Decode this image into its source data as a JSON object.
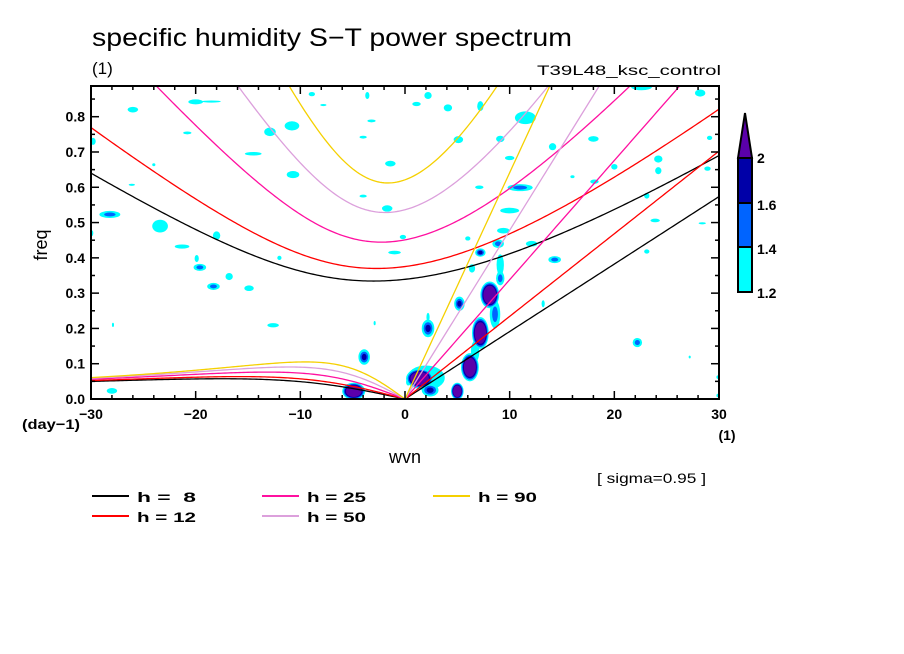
{
  "chart_data": {
    "type": "heatmap",
    "title": "specific humidity S−T power spectrum",
    "subtitle": "(1)",
    "run_label": "T39L48_ksc_control",
    "xlabel": "wvn",
    "ylabel": "freq",
    "x_units": "(1)",
    "y_units": "(day−1)",
    "xlim": [
      -30,
      30
    ],
    "ylim": [
      0,
      0.887
    ],
    "grid": false,
    "xticks": [
      -30,
      -20,
      -10,
      0,
      10,
      20,
      30
    ],
    "xtick_labels": [
      "−30",
      "−20",
      "−10",
      "0",
      "10",
      "20",
      "30"
    ],
    "x_minor_step": 2,
    "yticks": [
      0,
      0.1,
      0.2,
      0.3,
      0.4,
      0.5,
      0.6,
      0.7,
      0.8
    ],
    "ytick_labels": [
      "0.0",
      "0.1",
      "0.2",
      "0.3",
      "0.4",
      "0.5",
      "0.6",
      "0.7",
      "0.8"
    ],
    "y_minor_step": 0.05,
    "note": "[ sigma=0.95 ]",
    "colorbar": {
      "levels": [
        1.2,
        1.4,
        1.6,
        2
      ],
      "labels": [
        "1.2",
        "1.4",
        "1.6",
        "2"
      ],
      "colors": [
        "#00ffff",
        "#0064ff",
        "#0000a8",
        "#5a00aa"
      ],
      "extend": "max",
      "placement": "right"
    },
    "dispersion_curves": {
      "wave_types": [
        "kelvin",
        "n1_equatorial_rossby",
        "n1_inertio_gravity"
      ]
    },
    "legend_placement": "bottom",
    "legend": [
      {
        "label": "h =  8",
        "h": 8,
        "color": "#000000"
      },
      {
        "label": "h = 12",
        "h": 12,
        "color": "#ff0000"
      },
      {
        "label": "h = 25",
        "h": 25,
        "color": "#ff10a0"
      },
      {
        "label": "h = 50",
        "h": 50,
        "color": "#dca0dc"
      },
      {
        "label": "h = 90",
        "h": 90,
        "color": "#f5d000"
      }
    ],
    "shaded_regions": {
      "fields": [
        "wvn",
        "freq",
        "dwvn",
        "dfreq",
        "max_level"
      ],
      "rows": [
        [
          -20.0,
          0.842,
          0.7,
          0.007,
          1.2
        ],
        [
          -18.5,
          0.843,
          0.9,
          0.003,
          1.2
        ],
        [
          -26.0,
          0.82,
          0.5,
          0.008,
          1.2
        ],
        [
          -10.8,
          0.774,
          0.7,
          0.013,
          1.2
        ],
        [
          -12.9,
          0.757,
          0.55,
          0.012,
          1.2
        ],
        [
          -14.5,
          0.695,
          0.8,
          0.005,
          1.2
        ],
        [
          -10.7,
          0.636,
          0.6,
          0.01,
          1.2
        ],
        [
          -28.2,
          0.523,
          1.0,
          0.01,
          1.4
        ],
        [
          -23.4,
          0.49,
          0.75,
          0.018,
          1.2
        ],
        [
          -18.0,
          0.463,
          0.35,
          0.012,
          1.2
        ],
        [
          -21.3,
          0.432,
          0.7,
          0.006,
          1.2
        ],
        [
          -1.7,
          0.54,
          0.5,
          0.009,
          1.2
        ],
        [
          -1.4,
          0.667,
          0.5,
          0.008,
          1.2
        ],
        [
          -3.6,
          0.86,
          0.2,
          0.01,
          1.2
        ],
        [
          -24.0,
          0.664,
          0.15,
          0.004,
          1.2
        ],
        [
          -26.1,
          0.607,
          0.3,
          0.003,
          1.2
        ],
        [
          -20.8,
          0.754,
          0.4,
          0.004,
          1.2
        ],
        [
          -3.2,
          0.788,
          0.4,
          0.004,
          1.2
        ],
        [
          -4.0,
          0.742,
          0.35,
          0.004,
          1.2
        ],
        [
          -4.0,
          0.575,
          0.35,
          0.004,
          1.2
        ],
        [
          -1.0,
          0.415,
          0.6,
          0.005,
          1.2
        ],
        [
          -0.2,
          0.459,
          0.3,
          0.006,
          1.2
        ],
        [
          -8.9,
          0.864,
          0.3,
          0.006,
          1.2
        ],
        [
          -7.8,
          0.833,
          0.3,
          0.003,
          1.2
        ],
        [
          -29.8,
          0.73,
          0.25,
          0.01,
          1.2
        ],
        [
          -29.9,
          0.47,
          0.12,
          0.008,
          1.2
        ],
        [
          -19.9,
          0.398,
          0.2,
          0.01,
          1.2
        ],
        [
          -19.6,
          0.373,
          0.6,
          0.01,
          1.4
        ],
        [
          -16.8,
          0.347,
          0.35,
          0.01,
          1.2
        ],
        [
          -18.3,
          0.319,
          0.6,
          0.01,
          1.4
        ],
        [
          -14.9,
          0.314,
          0.45,
          0.008,
          1.2
        ],
        [
          -12.0,
          0.4,
          0.2,
          0.006,
          1.2
        ],
        [
          -12.6,
          0.209,
          0.55,
          0.006,
          1.2
        ],
        [
          -28.0,
          0.023,
          0.5,
          0.008,
          1.2
        ],
        [
          -27.9,
          0.21,
          0.1,
          0.006,
          1.2
        ],
        [
          -2.9,
          0.215,
          0.1,
          0.006,
          1.2
        ],
        [
          -3.9,
          0.119,
          0.55,
          0.022,
          1.6
        ],
        [
          -4.9,
          0.022,
          1.1,
          0.024,
          2
        ],
        [
          0.3,
          0.048,
          0.2,
          0.01,
          1.2
        ],
        [
          2.0,
          0.06,
          1.8,
          0.035,
          1.2
        ],
        [
          2.2,
          0.232,
          0.15,
          0.012,
          1.2
        ],
        [
          2.2,
          0.2,
          0.6,
          0.025,
          1.6
        ],
        [
          1.4,
          0.058,
          1.3,
          0.028,
          2
        ],
        [
          2.4,
          0.025,
          0.8,
          0.018,
          1.6
        ],
        [
          5.0,
          0.022,
          0.6,
          0.024,
          2
        ],
        [
          6.7,
          0.135,
          0.4,
          0.03,
          1.2
        ],
        [
          8.6,
          0.24,
          0.5,
          0.04,
          1.4
        ],
        [
          6.2,
          0.09,
          0.85,
          0.04,
          2
        ],
        [
          7.2,
          0.187,
          0.8,
          0.045,
          2
        ],
        [
          8.1,
          0.295,
          0.9,
          0.038,
          2
        ],
        [
          5.2,
          0.27,
          0.5,
          0.02,
          1.6
        ],
        [
          9.1,
          0.342,
          0.4,
          0.02,
          1.4
        ],
        [
          9.1,
          0.38,
          0.35,
          0.03,
          1.2
        ],
        [
          6.4,
          0.37,
          0.3,
          0.012,
          1.2
        ],
        [
          7.2,
          0.415,
          0.5,
          0.012,
          1.6
        ],
        [
          8.9,
          0.44,
          0.55,
          0.012,
          1.4
        ],
        [
          9.4,
          0.477,
          0.6,
          0.008,
          1.2
        ],
        [
          10.0,
          0.534,
          0.9,
          0.008,
          1.2
        ],
        [
          11.0,
          0.599,
          1.2,
          0.01,
          1.4
        ],
        [
          7.1,
          0.6,
          0.4,
          0.005,
          1.2
        ],
        [
          12.1,
          0.44,
          0.55,
          0.008,
          1.2
        ],
        [
          14.3,
          0.395,
          0.6,
          0.01,
          1.4
        ],
        [
          13.2,
          0.27,
          0.15,
          0.01,
          1.2
        ],
        [
          23.1,
          0.418,
          0.25,
          0.006,
          1.2
        ],
        [
          22.2,
          0.16,
          0.45,
          0.013,
          1.4
        ],
        [
          2.2,
          0.86,
          0.35,
          0.01,
          1.2
        ],
        [
          1.1,
          0.836,
          0.4,
          0.006,
          1.2
        ],
        [
          4.1,
          0.825,
          0.4,
          0.01,
          1.2
        ],
        [
          7.2,
          0.83,
          0.3,
          0.014,
          1.2
        ],
        [
          11.5,
          0.797,
          1.0,
          0.018,
          1.2
        ],
        [
          9.1,
          0.737,
          0.4,
          0.009,
          1.2
        ],
        [
          5.1,
          0.735,
          0.45,
          0.01,
          1.2
        ],
        [
          14.1,
          0.715,
          0.35,
          0.01,
          1.2
        ],
        [
          18.0,
          0.737,
          0.5,
          0.008,
          1.2
        ],
        [
          10.0,
          0.683,
          0.45,
          0.006,
          1.2
        ],
        [
          24.2,
          0.68,
          0.4,
          0.01,
          1.2
        ],
        [
          24.2,
          0.647,
          0.3,
          0.01,
          1.2
        ],
        [
          20.0,
          0.658,
          0.3,
          0.008,
          1.2
        ],
        [
          18.1,
          0.616,
          0.4,
          0.006,
          1.2
        ],
        [
          23.1,
          0.576,
          0.25,
          0.008,
          1.2
        ],
        [
          22.6,
          0.885,
          1.0,
          0.01,
          1.2
        ],
        [
          28.2,
          0.867,
          0.5,
          0.01,
          1.2
        ],
        [
          29.1,
          0.74,
          0.25,
          0.006,
          1.2
        ],
        [
          23.9,
          0.506,
          0.45,
          0.005,
          1.2
        ],
        [
          28.4,
          0.498,
          0.35,
          0.003,
          1.2
        ],
        [
          6.0,
          0.455,
          0.25,
          0.006,
          1.2
        ],
        [
          16.0,
          0.63,
          0.2,
          0.004,
          1.2
        ],
        [
          28.9,
          0.653,
          0.3,
          0.006,
          1.2
        ],
        [
          29.9,
          0.062,
          0.15,
          0.005,
          1.2
        ],
        [
          29.9,
          0.01,
          0.15,
          0.005,
          1.2
        ],
        [
          27.2,
          0.119,
          0.1,
          0.004,
          1.2
        ]
      ]
    }
  }
}
